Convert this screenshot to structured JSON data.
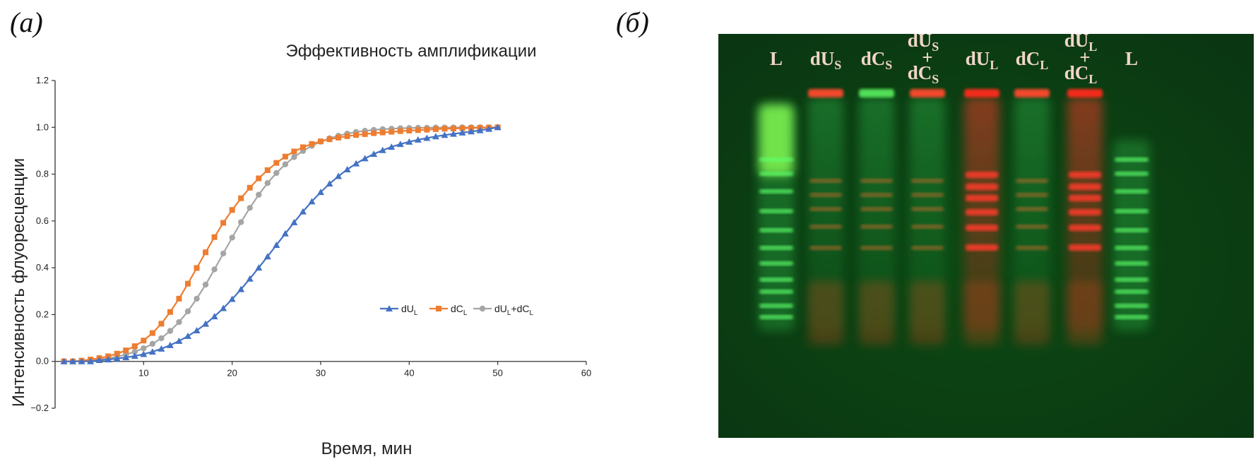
{
  "panels": {
    "a": "(а)",
    "b": "(б)"
  },
  "chart_data": {
    "type": "line",
    "title": "Эффективность амплификации",
    "xlabel": "Время, мин",
    "ylabel": "Интенсивность флуоресценции",
    "xlim": [
      0,
      60
    ],
    "ylim": [
      -0.2,
      1.2
    ],
    "xticks": [
      10,
      20,
      30,
      40,
      50,
      60
    ],
    "yticks": [
      -0.2,
      0.0,
      0.2,
      0.4,
      0.6,
      0.8,
      1.0,
      1.2
    ],
    "grid": false,
    "legend_position": "center-right",
    "series": [
      {
        "name": "dU",
        "sub": "L",
        "marker": "triangle",
        "color": "#4472C4",
        "points": [
          [
            1,
            0
          ],
          [
            2,
            0
          ],
          [
            3,
            0
          ],
          [
            4,
            0
          ],
          [
            5,
            0.005
          ],
          [
            6,
            0.008
          ],
          [
            7,
            0.012
          ],
          [
            8,
            0.017
          ],
          [
            9,
            0.023
          ],
          [
            10,
            0.031
          ],
          [
            11,
            0.041
          ],
          [
            12,
            0.054
          ],
          [
            13,
            0.069
          ],
          [
            14,
            0.087
          ],
          [
            15,
            0.108
          ],
          [
            16,
            0.132
          ],
          [
            17,
            0.16
          ],
          [
            18,
            0.192
          ],
          [
            19,
            0.227
          ],
          [
            20,
            0.266
          ],
          [
            21,
            0.308
          ],
          [
            22,
            0.353
          ],
          [
            23,
            0.4
          ],
          [
            24,
            0.448
          ],
          [
            25,
            0.497
          ],
          [
            26,
            0.546
          ],
          [
            27,
            0.594
          ],
          [
            28,
            0.64
          ],
          [
            29,
            0.683
          ],
          [
            30,
            0.723
          ],
          [
            31,
            0.759
          ],
          [
            32,
            0.791
          ],
          [
            33,
            0.82
          ],
          [
            34,
            0.845
          ],
          [
            35,
            0.867
          ],
          [
            36,
            0.886
          ],
          [
            37,
            0.902
          ],
          [
            38,
            0.916
          ],
          [
            39,
            0.928
          ],
          [
            40,
            0.938
          ],
          [
            41,
            0.947
          ],
          [
            42,
            0.954
          ],
          [
            43,
            0.961
          ],
          [
            44,
            0.967
          ],
          [
            45,
            0.972
          ],
          [
            46,
            0.977
          ],
          [
            47,
            0.982
          ],
          [
            48,
            0.987
          ],
          [
            49,
            0.993
          ],
          [
            50,
            1.0
          ]
        ]
      },
      {
        "name": "dC",
        "sub": "L",
        "marker": "square",
        "color": "#ED7D31",
        "points": [
          [
            1,
            0
          ],
          [
            2,
            0
          ],
          [
            3,
            0.003
          ],
          [
            4,
            0.008
          ],
          [
            5,
            0.014
          ],
          [
            6,
            0.022
          ],
          [
            7,
            0.033
          ],
          [
            8,
            0.047
          ],
          [
            9,
            0.065
          ],
          [
            10,
            0.089
          ],
          [
            11,
            0.121
          ],
          [
            12,
            0.161
          ],
          [
            13,
            0.211
          ],
          [
            14,
            0.268
          ],
          [
            15,
            0.332
          ],
          [
            16,
            0.399
          ],
          [
            17,
            0.466
          ],
          [
            18,
            0.531
          ],
          [
            19,
            0.592
          ],
          [
            20,
            0.647
          ],
          [
            21,
            0.697
          ],
          [
            22,
            0.742
          ],
          [
            23,
            0.782
          ],
          [
            24,
            0.817
          ],
          [
            25,
            0.848
          ],
          [
            26,
            0.875
          ],
          [
            27,
            0.897
          ],
          [
            28,
            0.915
          ],
          [
            29,
            0.929
          ],
          [
            30,
            0.94
          ],
          [
            31,
            0.949
          ],
          [
            32,
            0.956
          ],
          [
            33,
            0.962
          ],
          [
            34,
            0.967
          ],
          [
            35,
            0.971
          ],
          [
            36,
            0.975
          ],
          [
            37,
            0.978
          ],
          [
            38,
            0.981
          ],
          [
            39,
            0.984
          ],
          [
            40,
            0.986
          ],
          [
            41,
            0.988
          ],
          [
            42,
            0.99
          ],
          [
            43,
            0.992
          ],
          [
            44,
            0.994
          ],
          [
            45,
            0.995
          ],
          [
            46,
            0.996
          ],
          [
            47,
            0.997
          ],
          [
            48,
            0.998
          ],
          [
            49,
            0.999
          ],
          [
            50,
            1.0
          ]
        ]
      },
      {
        "name": "dU",
        "sub": "L",
        "suffix": "+dC",
        "suffix_sub": "L",
        "marker": "circle",
        "color": "#A5A5A5",
        "points": [
          [
            1,
            0
          ],
          [
            2,
            0
          ],
          [
            3,
            0
          ],
          [
            4,
            0.004
          ],
          [
            5,
            0.008
          ],
          [
            6,
            0.013
          ],
          [
            7,
            0.02
          ],
          [
            8,
            0.029
          ],
          [
            9,
            0.041
          ],
          [
            10,
            0.056
          ],
          [
            11,
            0.075
          ],
          [
            12,
            0.099
          ],
          [
            13,
            0.13
          ],
          [
            14,
            0.168
          ],
          [
            15,
            0.214
          ],
          [
            16,
            0.268
          ],
          [
            17,
            0.328
          ],
          [
            18,
            0.393
          ],
          [
            19,
            0.461
          ],
          [
            20,
            0.529
          ],
          [
            21,
            0.595
          ],
          [
            22,
            0.656
          ],
          [
            23,
            0.712
          ],
          [
            24,
            0.762
          ],
          [
            25,
            0.805
          ],
          [
            26,
            0.842
          ],
          [
            27,
            0.873
          ],
          [
            28,
            0.899
          ],
          [
            29,
            0.921
          ],
          [
            30,
            0.939
          ],
          [
            31,
            0.953
          ],
          [
            32,
            0.964
          ],
          [
            33,
            0.973
          ],
          [
            34,
            0.98
          ],
          [
            35,
            0.985
          ],
          [
            36,
            0.989
          ],
          [
            37,
            0.992
          ],
          [
            38,
            0.994
          ],
          [
            39,
            0.996
          ],
          [
            40,
            0.997
          ],
          [
            41,
            0.998
          ],
          [
            42,
            0.998
          ],
          [
            43,
            0.999
          ],
          [
            44,
            0.999
          ],
          [
            45,
            0.999
          ],
          [
            46,
            1.0
          ],
          [
            47,
            1.0
          ],
          [
            48,
            1.0
          ],
          [
            49,
            1.0
          ],
          [
            50,
            1.0
          ]
        ]
      }
    ]
  },
  "gel": {
    "lanes": [
      {
        "label": "L",
        "type": "ladder"
      },
      {
        "label": "dU",
        "sub": "S",
        "type": "mix"
      },
      {
        "label": "dC",
        "sub": "S",
        "type": "mix"
      },
      {
        "label": "dU",
        "sub": "S",
        "plus": "+",
        "label2": "dC",
        "sub2": "S",
        "type": "mix"
      },
      {
        "label": "dU",
        "sub": "L",
        "type": "red"
      },
      {
        "label": "dC",
        "sub": "L",
        "type": "mix"
      },
      {
        "label": "dU",
        "sub": "L",
        "plus": "+",
        "label2": "dC",
        "sub2": "L",
        "type": "red"
      },
      {
        "label": "L",
        "type": "ladder"
      }
    ]
  }
}
